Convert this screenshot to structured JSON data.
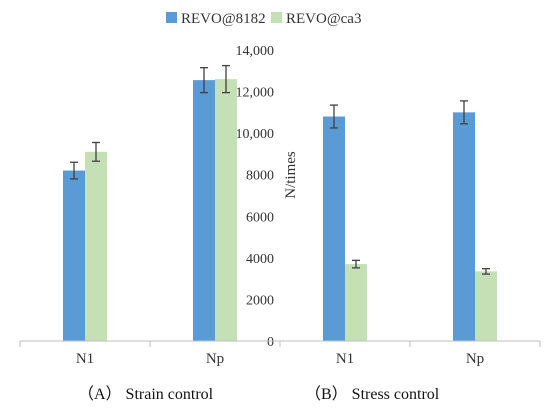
{
  "chart_data": {
    "type": "bar",
    "ylabel": "N/times",
    "ylim": [
      0,
      14000
    ],
    "yticks": [
      "0",
      "2000",
      "4000",
      "6000",
      "8000",
      "10,000",
      "12,000",
      "14,000"
    ],
    "ytick_values": [
      0,
      2000,
      4000,
      6000,
      8000,
      10000,
      12000,
      14000
    ],
    "legend_position": "top",
    "grid": false,
    "groups": [
      {
        "caption": "（A）  Strain control",
        "categories": [
          "N1",
          "Np"
        ]
      },
      {
        "caption": "（B）  Stress control",
        "categories": [
          "N1",
          "Np"
        ]
      }
    ],
    "categories": [
      "N1",
      "Np",
      "N1",
      "Np"
    ],
    "series": [
      {
        "name": "REVO@8182",
        "color": "#5b9bd5",
        "values": [
          8200,
          12550,
          10800,
          11000
        ],
        "errors": [
          400,
          600,
          550,
          550
        ]
      },
      {
        "name": "REVO@ca3",
        "color": "#c5e0b4",
        "values": [
          9100,
          12600,
          3700,
          3350
        ],
        "errors": [
          450,
          650,
          180,
          130
        ]
      }
    ]
  }
}
